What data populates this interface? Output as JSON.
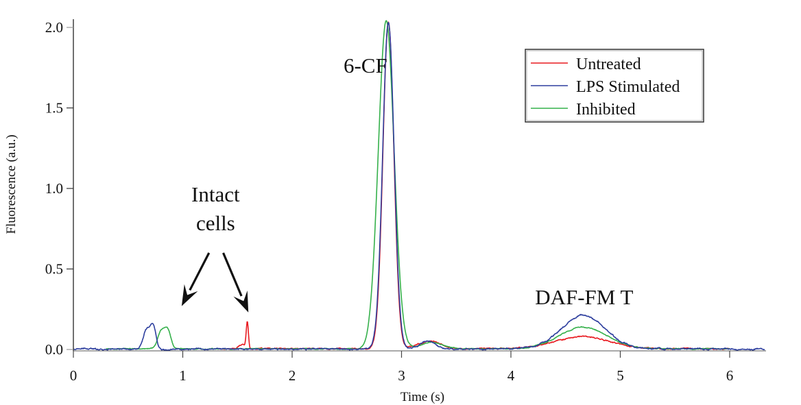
{
  "chart_data": {
    "type": "line",
    "title": "",
    "xlabel": "Time (s)",
    "ylabel": "Fluorescence (a.u.)",
    "xlim": [
      0,
      6.32
    ],
    "ylim": [
      0,
      2.0
    ],
    "x_ticks": [
      0,
      1,
      2,
      3,
      4,
      5,
      6
    ],
    "x_tick_labels": [
      "0",
      "1",
      "2",
      "3",
      "4",
      "5",
      "6"
    ],
    "y_ticks": [
      0,
      0.5,
      1.0,
      1.5,
      2.0
    ],
    "y_tick_labels": [
      "0.0",
      "0.5",
      "1.0",
      "1.5",
      "2.0"
    ],
    "grid": false,
    "legend_position": "top-right",
    "series": [
      {
        "name": "Untreated",
        "color": "#e8191f",
        "x_range": [
          1.3,
          6.0
        ],
        "baseline": 0.005,
        "noise": 0.004,
        "peaks": [
          {
            "center": 1.545,
            "height": 0.025,
            "width": 0.03
          },
          {
            "center": 1.59,
            "height": 0.16,
            "width": 0.01
          },
          {
            "center": 2.88,
            "height": 2.03,
            "width": 0.05
          },
          {
            "center": 3.22,
            "height": 0.035,
            "width": 0.1
          },
          {
            "center": 3.32,
            "height": 0.02,
            "width": 0.06
          },
          {
            "center": 4.65,
            "height": 0.075,
            "width": 0.25
          }
        ]
      },
      {
        "name": "LPS Stimulated",
        "color": "#2e3f9e",
        "x_range": [
          0.0,
          6.32
        ],
        "baseline": 0.003,
        "noise": 0.005,
        "peaks": [
          {
            "center": 0.67,
            "height": 0.12,
            "width": 0.03
          },
          {
            "center": 0.73,
            "height": 0.14,
            "width": 0.025
          },
          {
            "center": 2.88,
            "height": 2.03,
            "width": 0.052
          },
          {
            "center": 3.24,
            "height": 0.048,
            "width": 0.07
          },
          {
            "center": 4.66,
            "height": 0.21,
            "width": 0.2
          }
        ]
      },
      {
        "name": "Inhibited",
        "color": "#34b04a",
        "x_range": [
          0.3,
          6.0
        ],
        "baseline": 0.004,
        "noise": 0.003,
        "peaks": [
          {
            "center": 0.8,
            "height": 0.1,
            "width": 0.03
          },
          {
            "center": 0.86,
            "height": 0.12,
            "width": 0.03
          },
          {
            "center": 2.86,
            "height": 2.04,
            "width": 0.072
          },
          {
            "center": 3.28,
            "height": 0.04,
            "width": 0.1
          },
          {
            "center": 4.66,
            "height": 0.135,
            "width": 0.22
          }
        ]
      }
    ],
    "annotations": [
      {
        "text": "6-CF",
        "x": 2.67,
        "y": 1.72
      },
      {
        "text": "Intact",
        "x": 1.3,
        "y": 0.92
      },
      {
        "text": "cells",
        "x": 1.3,
        "y": 0.74
      },
      {
        "text": "DAF-FM T",
        "x": 4.67,
        "y": 0.28
      }
    ],
    "arrows": [
      {
        "from": [
          1.24,
          0.6
        ],
        "to": [
          0.99,
          0.27
        ]
      },
      {
        "from": [
          1.37,
          0.6
        ],
        "to": [
          1.6,
          0.23
        ]
      }
    ]
  }
}
